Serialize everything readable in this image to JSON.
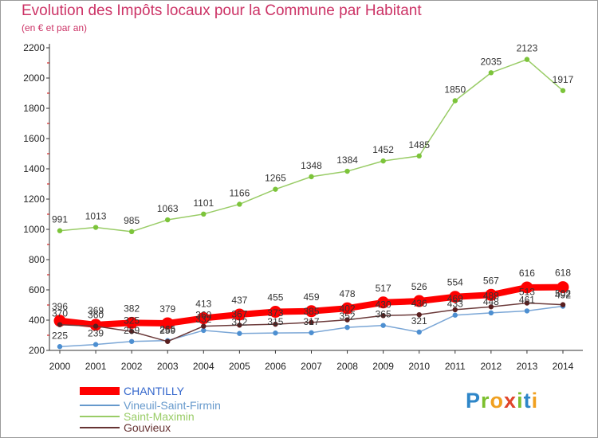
{
  "header": {
    "title": "Evolution des Impôts locaux pour la Commune par Habitant",
    "subtitle": "(en € et par an)"
  },
  "brand": {
    "text": "Proxiti",
    "letters": [
      "P",
      "r",
      "o",
      "x",
      "i",
      "t",
      "i"
    ]
  },
  "chart_data": {
    "type": "line",
    "title": "Evolution des Impôts locaux pour la Commune par Habitant",
    "subtitle": "(en € et par an)",
    "xlabel": "",
    "ylabel": "",
    "categories": [
      "2000",
      "2001",
      "2002",
      "2003",
      "2004",
      "2005",
      "2006",
      "2007",
      "2008",
      "2009",
      "2010",
      "2011",
      "2012",
      "2013",
      "2014"
    ],
    "ylim": [
      200,
      2200
    ],
    "yticks": [
      200,
      400,
      600,
      800,
      1000,
      1200,
      1400,
      1600,
      1800,
      2000,
      2200
    ],
    "grid": false,
    "legend": "bottom-left",
    "series": [
      {
        "name": "CHANTILLY",
        "color": "#ff0000",
        "values": [
          396,
          369,
          382,
          379,
          413,
          437,
          455,
          459,
          478,
          517,
          526,
          554,
          567,
          616,
          618
        ]
      },
      {
        "name": "Vineuil-Saint-Firmin",
        "color": "#6699cc",
        "values": [
          225,
          239,
          259,
          265,
          332,
          312,
          315,
          317,
          352,
          365,
          321,
          433,
          448,
          461,
          492
        ]
      },
      {
        "name": "Saint-Maximin",
        "color": "#99cc66",
        "values": [
          991,
          1013,
          985,
          1063,
          1101,
          1166,
          1265,
          1348,
          1384,
          1452,
          1485,
          1850,
          2035,
          2123,
          1917
        ]
      },
      {
        "name": "Gouvieux",
        "color": "#663333",
        "values": [
          370,
          360,
          325,
          259,
          360,
          367,
          373,
          385,
          402,
          430,
          436,
          469,
          488,
          513,
          502
        ]
      }
    ]
  }
}
